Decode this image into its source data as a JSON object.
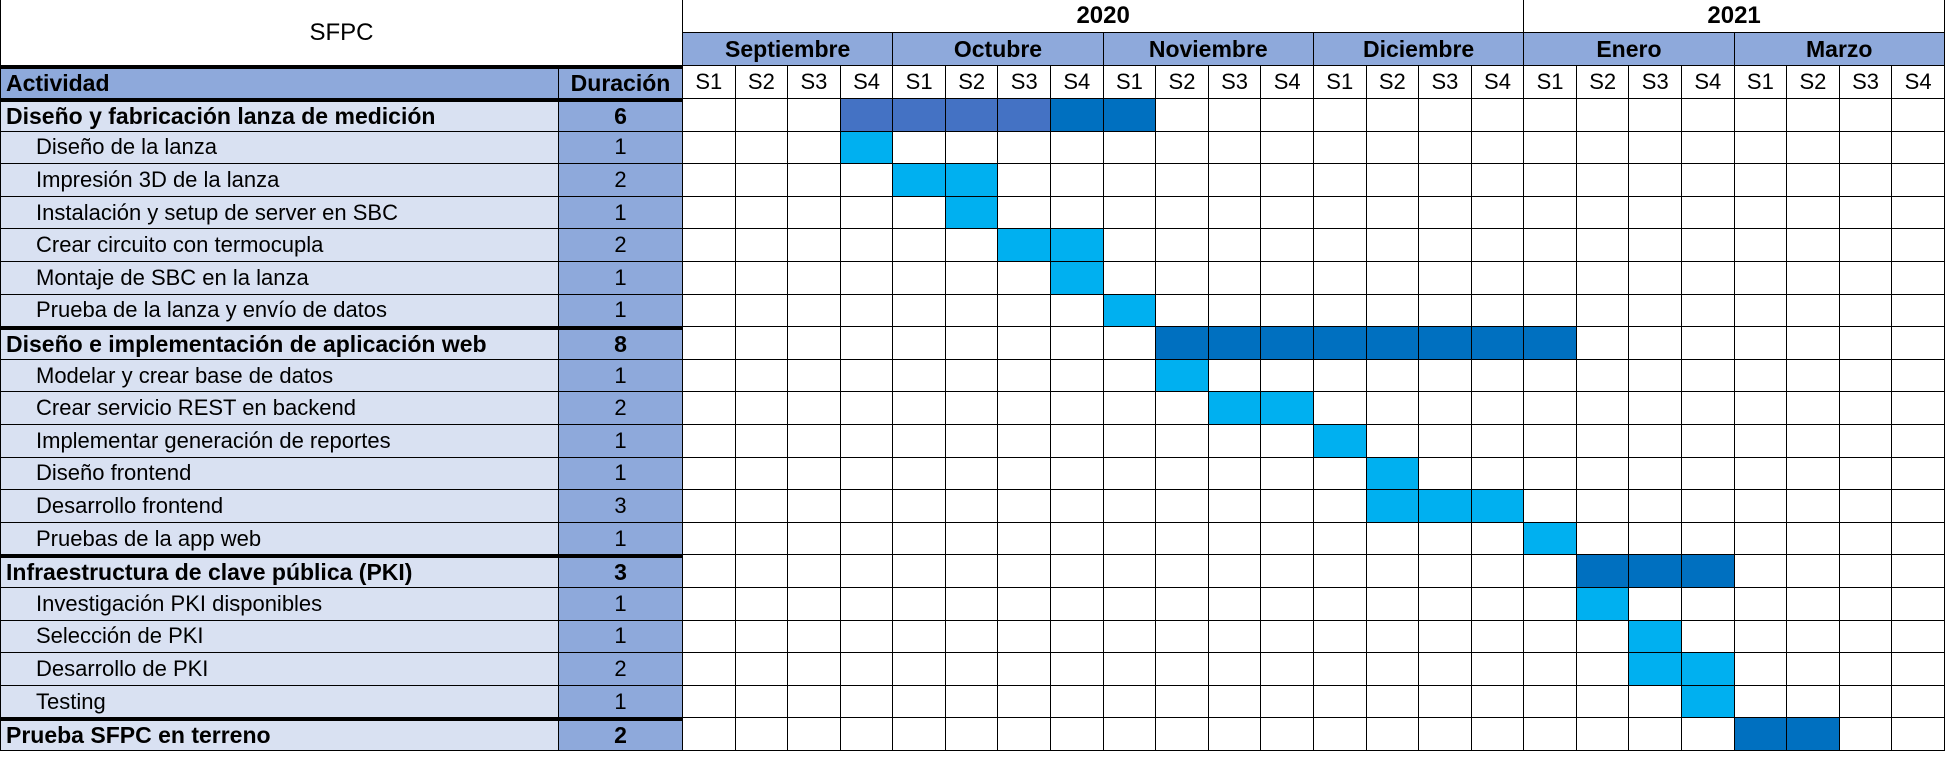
{
  "chart_data": {
    "type": "gantt",
    "title": "SFPC",
    "columns": {
      "activity": "Actividad",
      "duration": "Duración"
    },
    "years": [
      {
        "label": "2020",
        "weeks": 16
      },
      {
        "label": "2021",
        "weeks": 8
      }
    ],
    "months": [
      {
        "label": "Septiembre",
        "weeks": 4
      },
      {
        "label": "Octubre",
        "weeks": 4
      },
      {
        "label": "Noviembre",
        "weeks": 4
      },
      {
        "label": "Diciembre",
        "weeks": 4
      },
      {
        "label": "Enero",
        "weeks": 4
      },
      {
        "label": "Marzo",
        "weeks": 4
      }
    ],
    "week_labels": [
      "S1",
      "S2",
      "S3",
      "S4",
      "S1",
      "S2",
      "S3",
      "S4",
      "S1",
      "S2",
      "S3",
      "S4",
      "S1",
      "S2",
      "S3",
      "S4",
      "S1",
      "S2",
      "S3",
      "S4",
      "S1",
      "S2",
      "S3",
      "S4"
    ],
    "tasks": [
      {
        "name": "Diseño y fabricación lanza de medición",
        "duration": "6",
        "group": true,
        "start": 3,
        "weeks": 6,
        "shades": [
          "#4472c4",
          "#4472c4",
          "#4472c4",
          "#4472c4",
          "#0070c0",
          "#0070c0"
        ]
      },
      {
        "name": "Diseño de la lanza",
        "duration": "1",
        "group": false,
        "start": 3,
        "weeks": 1
      },
      {
        "name": "Impresión 3D de la lanza",
        "duration": "2",
        "group": false,
        "start": 4,
        "weeks": 2
      },
      {
        "name": "Instalación y setup de server en SBC",
        "duration": "1",
        "group": false,
        "start": 5,
        "weeks": 1
      },
      {
        "name": "Crear circuito con termocupla",
        "duration": "2",
        "group": false,
        "start": 6,
        "weeks": 2
      },
      {
        "name": "Montaje de SBC en la lanza",
        "duration": "1",
        "group": false,
        "start": 7,
        "weeks": 1
      },
      {
        "name": "Prueba de la lanza y envío de datos",
        "duration": "1",
        "group": false,
        "start": 8,
        "weeks": 1
      },
      {
        "name": "Diseño e implementación de aplicación web",
        "duration": "8",
        "group": true,
        "start": 9,
        "weeks": 8
      },
      {
        "name": "Modelar y crear base de datos",
        "duration": "1",
        "group": false,
        "start": 9,
        "weeks": 1
      },
      {
        "name": "Crear servicio REST en backend",
        "duration": "2",
        "group": false,
        "start": 10,
        "weeks": 2
      },
      {
        "name": "Implementar generación de reportes",
        "duration": "1",
        "group": false,
        "start": 12,
        "weeks": 1
      },
      {
        "name": "Diseño frontend",
        "duration": "1",
        "group": false,
        "start": 13,
        "weeks": 1
      },
      {
        "name": "Desarrollo frontend",
        "duration": "3",
        "group": false,
        "start": 13,
        "weeks": 3
      },
      {
        "name": "Pruebas de la app web",
        "duration": "1",
        "group": false,
        "start": 16,
        "weeks": 1
      },
      {
        "name": "Infraestructura de clave pública (PKI)",
        "duration": "3",
        "group": true,
        "start": 17,
        "weeks": 3
      },
      {
        "name": "Investigación PKI disponibles",
        "duration": "1",
        "group": false,
        "start": 17,
        "weeks": 1
      },
      {
        "name": "Selección de PKI",
        "duration": "1",
        "group": false,
        "start": 18,
        "weeks": 1
      },
      {
        "name": "Desarrollo de PKI",
        "duration": "2",
        "group": false,
        "start": 18,
        "weeks": 2
      },
      {
        "name": "Testing",
        "duration": "1",
        "group": false,
        "start": 19,
        "weeks": 1
      },
      {
        "name": "Prueba SFPC en terreno",
        "duration": "2",
        "group": true,
        "start": 20,
        "weeks": 2
      }
    ],
    "colors": {
      "group_bar": "#0070c0",
      "task_bar": "#00b0f0",
      "header_fill": "#8ea9db",
      "activity_fill": "#d9e1f2",
      "grid_fill": "#ffffff",
      "line": "#000000"
    }
  }
}
